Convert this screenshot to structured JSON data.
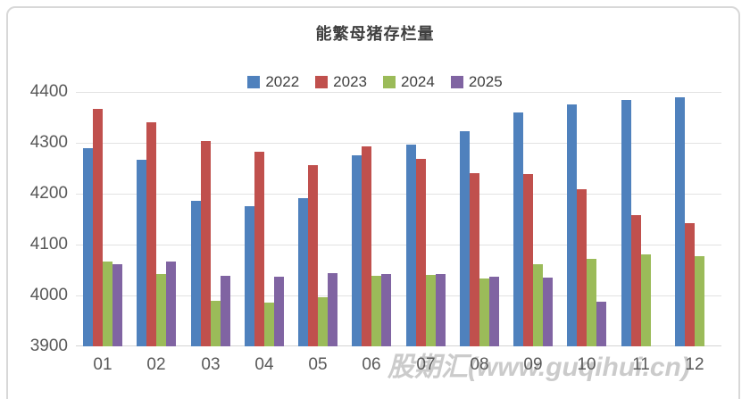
{
  "title": "能繁母猪存栏量",
  "watermark": "股期汇(www.guqihui.cn)",
  "colors": {
    "series_2022": "#4F81BD",
    "series_2023": "#C0504D",
    "series_2024": "#9BBB59",
    "series_2025": "#8064A2",
    "gridline": "#e2e2e2",
    "axis_text": "#595959",
    "title_text": "#3f3f3f",
    "frame_border": "#d8d8d8",
    "watermark_text": "#c3c3c3"
  },
  "chart_data": {
    "type": "bar",
    "title": "能繁母猪存栏量",
    "categories": [
      "01",
      "02",
      "03",
      "04",
      "05",
      "06",
      "07",
      "08",
      "09",
      "10",
      "11",
      "12"
    ],
    "series": [
      {
        "name": "2022",
        "color": "#4F81BD",
        "values": [
          4289,
          4267,
          4186,
          4176,
          4192,
          4276,
          4297,
          4322,
          4360,
          4376,
          4385,
          4389
        ]
      },
      {
        "name": "2023",
        "color": "#C0504D",
        "values": [
          4366,
          4341,
          4303,
          4283,
          4256,
          4293,
          4269,
          4240,
          4239,
          4209,
          4158,
          4142
        ]
      },
      {
        "name": "2024",
        "color": "#9BBB59",
        "values": [
          4067,
          4042,
          3990,
          3986,
          3996,
          4038,
          4040,
          4034,
          4062,
          4072,
          4080,
          4078
        ]
      },
      {
        "name": "2025",
        "color": "#8064A2",
        "values": [
          4062,
          4066,
          4039,
          4037,
          4043,
          4042,
          4042,
          4037,
          4035,
          3988,
          null,
          null
        ]
      }
    ],
    "xlabel": "",
    "ylabel": "",
    "ylim": [
      3900,
      4400
    ],
    "yticks": [
      3900,
      4000,
      4100,
      4200,
      4300,
      4400
    ],
    "grid": true,
    "legend_position": "top"
  }
}
